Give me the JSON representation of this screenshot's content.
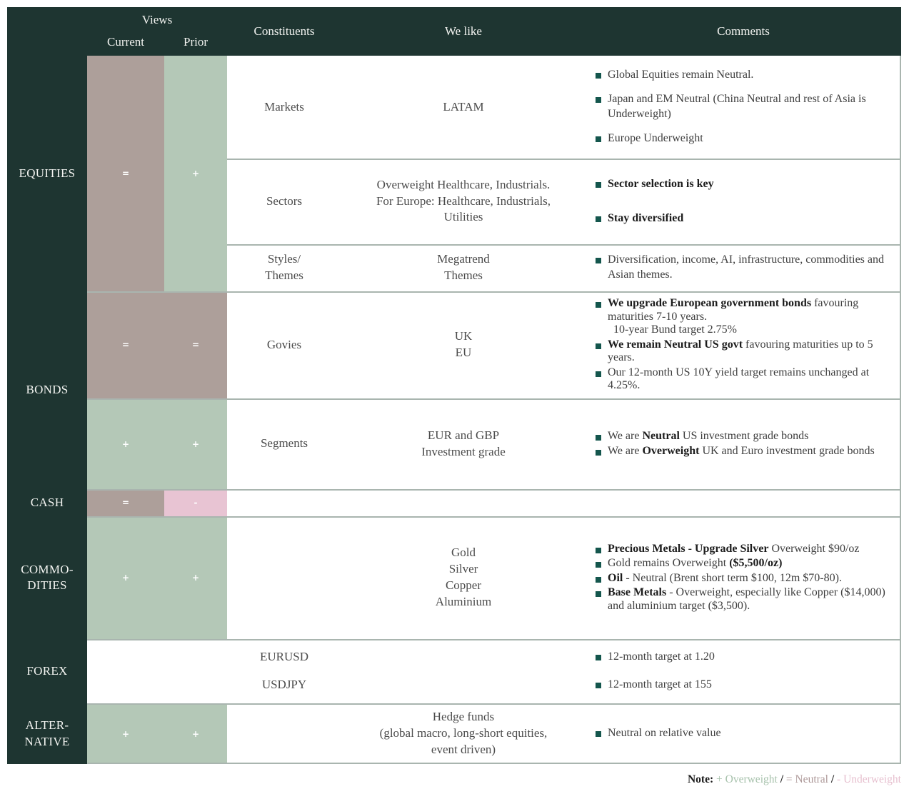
{
  "colors": {
    "dark": "#1e3531",
    "neutral": "#ad9f9a",
    "positive": "#b4c8b7",
    "negative": "#e8c4d3",
    "line": "#a9b5af",
    "bullet": "#14564d",
    "ink": "#3e3e3e",
    "ink-strong": "#1c1c1c",
    "header-text": "#f2f3f0",
    "note-positive": "#a7c2ac",
    "note-neutral": "#ad9898",
    "note-negative": "#e6bfce"
  },
  "header": {
    "views": "Views",
    "current": "Current",
    "prior": "Prior",
    "constituents": "Constituents",
    "we_like": "We like",
    "comments": "Comments"
  },
  "sections": [
    {
      "label": "EQUITIES",
      "views": {
        "current": {
          "symbol": "=",
          "meaning": "Neutral"
        },
        "prior": {
          "symbol": "+",
          "meaning": "Overweight"
        }
      },
      "rows": [
        {
          "constituents": "Markets",
          "we_like": "LATAM",
          "comments": [
            [
              {
                "t": "Global Equities remain Neutral."
              }
            ],
            [
              {
                "t": "Japan and EM Neutral (China Neutral and rest of Asia is Underweight)"
              }
            ],
            [
              {
                "t": "Europe Underweight"
              }
            ]
          ]
        },
        {
          "constituents": "Sectors",
          "we_like": "Overweight Healthcare, Industrials.\nFor Europe: Healthcare, Industrials,\nUtilities",
          "comments": [
            [
              {
                "t": "Sector selection is key",
                "b": true
              }
            ],
            [
              {
                "t": "Stay diversified",
                "b": true
              }
            ]
          ]
        },
        {
          "constituents": "Styles/\nThemes",
          "we_like": "Megatrend\nThemes",
          "comments": [
            [
              {
                "t": "Diversification, income, AI, infrastructure, commodities and Asian themes."
              }
            ]
          ]
        }
      ]
    },
    {
      "label": "BONDS",
      "rows": [
        {
          "constituents": "Govies",
          "we_like": "UK\nEU",
          "views": {
            "current": {
              "symbol": "=",
              "meaning": "Neutral"
            },
            "prior": {
              "symbol": "=",
              "meaning": "Neutral"
            }
          },
          "comments": [
            [
              {
                "t": "We upgrade European government bonds",
                "b": true
              },
              {
                "t": " favouring maturities 7-10 years.\n  10-year Bund target 2.75%"
              }
            ],
            [
              {
                "t": "We remain Neutral US govt",
                "b": true
              },
              {
                "t": " favouring maturities up to 5 years."
              }
            ],
            [
              {
                "t": "Our 12-month US 10Y yield target remains unchanged at 4.25%."
              }
            ]
          ]
        },
        {
          "constituents": "Segments",
          "we_like": "EUR and GBP\nInvestment grade",
          "views": {
            "current": {
              "symbol": "+",
              "meaning": "Overweight"
            },
            "prior": {
              "symbol": "+",
              "meaning": "Overweight"
            }
          },
          "comments": [
            [
              {
                "t": "We are "
              },
              {
                "t": "Neutral",
                "b": true
              },
              {
                "t": " US investment grade bonds"
              }
            ],
            [
              {
                "t": "We are "
              },
              {
                "t": "Overweight",
                "b": true
              },
              {
                "t": " UK and Euro investment grade bonds"
              }
            ]
          ]
        }
      ]
    },
    {
      "label": "CASH",
      "views": {
        "current": {
          "symbol": "=",
          "meaning": "Neutral"
        },
        "prior": {
          "symbol": "-",
          "meaning": "Underweight"
        }
      },
      "rows": []
    },
    {
      "label": "COMMO-\nDITIES",
      "views": {
        "current": {
          "symbol": "+",
          "meaning": "Overweight"
        },
        "prior": {
          "symbol": "+",
          "meaning": "Overweight"
        }
      },
      "rows": [
        {
          "constituents": "",
          "we_like": "Gold\nSilver\nCopper\nAluminium",
          "comments": [
            [
              {
                "t": "Precious Metals - Upgrade Silver",
                "b": true
              },
              {
                "t": " Overweight $90/oz"
              }
            ],
            [
              {
                "t": "Gold remains Overweight "
              },
              {
                "t": "($5,500/oz)",
                "b": true
              }
            ],
            [
              {
                "t": "Oil",
                "b": true
              },
              {
                "t": " - Neutral (Brent short term $100, 12m $70-80)."
              }
            ],
            [
              {
                "t": "Base Metals",
                "b": true
              },
              {
                "t": " - Overweight, especially like Copper ($14,000) and aluminium target ($3,500)."
              }
            ]
          ]
        }
      ]
    },
    {
      "label": "FOREX",
      "rows": [
        {
          "constituents": "EURUSD",
          "we_like": "",
          "comments": [
            [
              {
                "t": "12-month target at 1.20"
              }
            ]
          ]
        },
        {
          "constituents": "USDJPY",
          "we_like": "",
          "comments": [
            [
              {
                "t": "12-month target at 155"
              }
            ]
          ]
        }
      ]
    },
    {
      "label": "ALTER-\nNATIVE",
      "views": {
        "current": {
          "symbol": "+",
          "meaning": "Overweight"
        },
        "prior": {
          "symbol": "+",
          "meaning": "Overweight"
        }
      },
      "rows": [
        {
          "constituents": "",
          "we_like": "Hedge funds\n(global macro, long-short equities,\nevent driven)",
          "comments": [
            [
              {
                "t": "Neutral on relative value"
              }
            ]
          ]
        }
      ]
    }
  ],
  "note": {
    "label": "Note:",
    "separator": "/",
    "items": [
      {
        "text": "+ Overweight",
        "meaning": "Overweight"
      },
      {
        "text": "= Neutral",
        "meaning": "Neutral"
      },
      {
        "text": "- Underweight",
        "meaning": "Underweight"
      }
    ]
  }
}
